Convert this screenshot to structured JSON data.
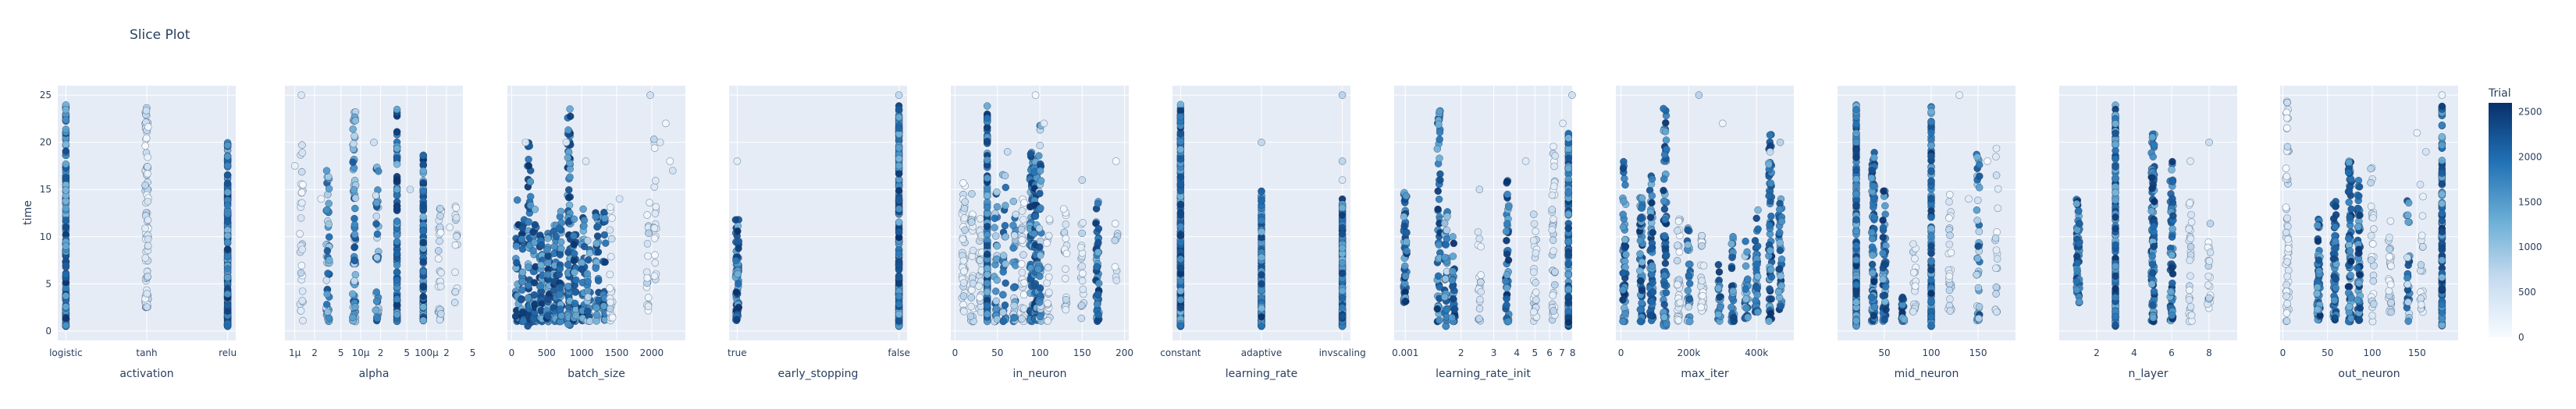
{
  "chart_data": {
    "type": "scatter",
    "title": "Slice Plot",
    "ylabel": "time",
    "ylim": [
      -1,
      26
    ],
    "yticks": [
      0,
      5,
      10,
      15,
      20,
      25
    ],
    "grid": true,
    "colorbar": {
      "title": "Trial",
      "ticks": [
        0,
        500,
        1000,
        1500,
        2000,
        2500
      ],
      "range": [
        0,
        2600
      ],
      "colorscale": [
        "#f7fbff",
        "#c6dbef",
        "#6baed6",
        "#2171b5",
        "#08306b"
      ]
    },
    "panels": [
      {
        "xlabel": "activation",
        "scale": "category",
        "categories": [
          "logistic",
          "tanh",
          "relu"
        ],
        "xrange": [
          -0.1,
          2.1
        ],
        "ticks": [
          0,
          1,
          2
        ],
        "ticklabels": [
          "logistic",
          "tanh",
          "relu"
        ],
        "columns": [
          [
            0,
            0.5,
            24,
            "d",
            200
          ],
          [
            1,
            2.5,
            24,
            "h",
            100
          ],
          [
            2,
            0.5,
            20,
            "d",
            300
          ]
        ]
      },
      {
        "xlabel": "alpha",
        "scale": "log",
        "xrange": [
          -6.15,
          -3.45
        ],
        "ticks": [
          -6,
          -5.699,
          -5.301,
          -5,
          -4.699,
          -4.301,
          -4,
          -3.699,
          -3.301
        ],
        "ticklabels": [
          "1μ",
          "2",
          "5",
          "10μ",
          "2",
          "5",
          "100μ",
          "2",
          "5"
        ],
        "columns": [
          [
            -5.9,
            1,
            20,
            "h",
            30
          ],
          [
            -5.5,
            1,
            17,
            "m",
            50
          ],
          [
            -5.1,
            1,
            24,
            "m",
            80
          ],
          [
            -4.75,
            1,
            18,
            "m",
            40
          ],
          [
            -4.45,
            1,
            24,
            "d",
            120
          ],
          [
            -4.05,
            1,
            19,
            "d",
            130
          ],
          [
            -3.8,
            1,
            13,
            "h",
            30
          ],
          [
            -3.55,
            3,
            16,
            "h",
            15
          ]
        ],
        "scatter": [
          [
            -5.9,
            25
          ],
          [
            -6.0,
            17.5
          ],
          [
            -5.6,
            14
          ],
          [
            -4.8,
            20
          ],
          [
            -4.25,
            15
          ],
          [
            -3.65,
            11
          ]
        ]
      },
      {
        "xlabel": "batch_size",
        "scale": "linear",
        "xrange": [
          -60,
          2480
        ],
        "ticks": [
          0,
          500,
          1000,
          1500,
          2000
        ],
        "ticklabels": [
          "0",
          "500",
          "1000",
          "1500",
          "2000"
        ],
        "columns": [
          [
            80,
            1,
            14,
            "d",
            30
          ],
          [
            160,
            1,
            12,
            "d",
            30
          ],
          [
            250,
            0.5,
            20,
            "d",
            50
          ],
          [
            330,
            1,
            13,
            "d",
            40
          ],
          [
            420,
            1,
            11,
            "d",
            40
          ],
          [
            520,
            1,
            12,
            "d",
            40
          ],
          [
            620,
            1,
            12,
            "d",
            40
          ],
          [
            700,
            1,
            13,
            "d",
            40
          ],
          [
            820,
            0.5,
            24,
            "d",
            90
          ],
          [
            900,
            1,
            12,
            "d",
            40
          ],
          [
            1020,
            1,
            13,
            "d",
            40
          ],
          [
            1100,
            1,
            10,
            "m",
            25
          ],
          [
            1220,
            1,
            13,
            "d",
            30
          ],
          [
            1320,
            1,
            14,
            "d",
            30
          ],
          [
            1420,
            1,
            14,
            "h",
            20
          ],
          [
            1950,
            2,
            14,
            "h",
            20
          ],
          [
            2050,
            3,
            22,
            "h",
            20
          ]
        ],
        "scatter": [
          [
            200,
            20
          ],
          [
            780,
            20
          ],
          [
            1060,
            18
          ],
          [
            1540,
            14
          ],
          [
            1980,
            25
          ],
          [
            2120,
            20
          ],
          [
            2200,
            22
          ],
          [
            2260,
            18
          ],
          [
            2300,
            17
          ]
        ]
      },
      {
        "xlabel": "early_stopping",
        "scale": "category",
        "categories": [
          "true",
          "false"
        ],
        "xrange": [
          -0.05,
          1.05
        ],
        "ticks": [
          0,
          1
        ],
        "ticklabels": [
          "true",
          "false"
        ],
        "columns": [
          [
            0,
            1,
            12,
            "d",
            80
          ],
          [
            1,
            0.5,
            24,
            "d",
            300
          ]
        ],
        "scatter": [
          [
            0,
            18
          ],
          [
            1,
            25
          ]
        ]
      },
      {
        "xlabel": "in_neuron",
        "scale": "linear",
        "xrange": [
          -5,
          205
        ],
        "ticks": [
          0,
          50,
          100,
          150,
          200
        ],
        "ticklabels": [
          "0",
          "50",
          "100",
          "150",
          "200"
        ],
        "columns": [
          [
            10,
            1,
            16,
            "h",
            40
          ],
          [
            20,
            1,
            15,
            "h",
            30
          ],
          [
            30,
            2,
            12,
            "h",
            30
          ],
          [
            38,
            1,
            24,
            "d",
            120
          ],
          [
            48,
            1,
            15,
            "m",
            30
          ],
          [
            58,
            1,
            17,
            "m",
            30
          ],
          [
            70,
            1,
            14,
            "m",
            30
          ],
          [
            80,
            1,
            14,
            "h",
            30
          ],
          [
            90,
            1,
            19,
            "d",
            60
          ],
          [
            95,
            1,
            18,
            "d",
            60
          ],
          [
            100,
            1,
            22,
            "m",
            50
          ],
          [
            110,
            1,
            13,
            "h",
            20
          ],
          [
            130,
            2,
            14,
            "h",
            20
          ],
          [
            150,
            1,
            12,
            "h",
            20
          ],
          [
            168,
            1,
            14,
            "d",
            50
          ],
          [
            190,
            5,
            14,
            "h",
            10
          ]
        ],
        "scatter": [
          [
            95,
            25
          ],
          [
            105,
            22
          ],
          [
            190,
            18
          ],
          [
            62,
            19
          ],
          [
            150,
            16
          ]
        ]
      },
      {
        "xlabel": "learning_rate",
        "scale": "category",
        "categories": [
          "constant",
          "adaptive",
          "invscaling"
        ],
        "xrange": [
          -0.1,
          2.1
        ],
        "ticks": [
          0,
          1,
          2
        ],
        "ticklabels": [
          "constant",
          "adaptive",
          "invscaling"
        ],
        "columns": [
          [
            0,
            0.5,
            24,
            "d",
            300
          ],
          [
            1,
            0.5,
            15,
            "d",
            160
          ],
          [
            2,
            0.5,
            14,
            "d",
            160
          ]
        ],
        "scatter": [
          [
            1,
            20
          ],
          [
            2,
            18
          ],
          [
            2,
            25
          ],
          [
            2,
            16
          ]
        ]
      },
      {
        "xlabel": "learning_rate_init",
        "scale": "log",
        "xrange": [
          -3.06,
          -2.1
        ],
        "ticks": [
          -3,
          -2.699,
          -2.523,
          -2.398,
          -2.301,
          -2.222,
          -2.155,
          -2.097
        ],
        "ticklabels": [
          "0.001",
          "2",
          "3",
          "4",
          "5",
          "6",
          "7",
          "8"
        ],
        "extra_ticks": [
          "1"
        ],
        "columns": [
          [
            -3.0,
            3,
            16,
            "d",
            60
          ],
          [
            -2.82,
            1,
            24,
            "d",
            60
          ],
          [
            -2.78,
            0.5,
            13,
            "m",
            40
          ],
          [
            -2.74,
            1,
            10,
            "d",
            30
          ],
          [
            -2.6,
            1,
            12,
            "h",
            20
          ],
          [
            -2.45,
            1,
            16,
            "d",
            50
          ],
          [
            -2.3,
            1,
            13,
            "h",
            30
          ],
          [
            -2.2,
            1,
            20,
            "h",
            40
          ],
          [
            -2.12,
            0.5,
            21,
            "d",
            120
          ]
        ],
        "scatter": [
          [
            -2.1,
            25
          ],
          [
            -2.15,
            22
          ],
          [
            -2.35,
            18
          ],
          [
            -2.6,
            15
          ]
        ]
      },
      {
        "xlabel": "max_iter",
        "scale": "linear",
        "xrange": [
          -15000,
          510000
        ],
        "ticks": [
          0,
          200000,
          400000
        ],
        "ticklabels": [
          "0",
          "200k",
          "400k"
        ],
        "columns": [
          [
            10000,
            1,
            18,
            "d",
            60
          ],
          [
            60000,
            1,
            15,
            "d",
            60
          ],
          [
            90000,
            1,
            17,
            "d",
            60
          ],
          [
            130000,
            0.5,
            24,
            "d",
            90
          ],
          [
            170000,
            1,
            13,
            "h",
            40
          ],
          [
            200000,
            1,
            11,
            "m",
            30
          ],
          [
            240000,
            2,
            12,
            "h",
            30
          ],
          [
            290000,
            1,
            8,
            "d",
            20
          ],
          [
            330000,
            1,
            10,
            "d",
            30
          ],
          [
            370000,
            1,
            10,
            "m",
            30
          ],
          [
            400000,
            2,
            13,
            "d",
            40
          ],
          [
            440000,
            1,
            21,
            "d",
            70
          ],
          [
            470000,
            2,
            15,
            "d",
            40
          ]
        ],
        "scatter": [
          [
            300000,
            22
          ],
          [
            440000,
            19
          ],
          [
            470000,
            20
          ],
          [
            230000,
            25
          ]
        ]
      },
      {
        "xlabel": "mid_neuron",
        "scale": "linear",
        "xrange": [
          0,
          190
        ],
        "ticks": [
          50,
          100,
          150
        ],
        "ticklabels": [
          "50",
          "100",
          "150"
        ],
        "columns": [
          [
            20,
            0.5,
            24,
            "d",
            200
          ],
          [
            38,
            1,
            19,
            "d",
            80
          ],
          [
            50,
            1,
            15,
            "d",
            60
          ],
          [
            70,
            1,
            4,
            "d",
            20
          ],
          [
            82,
            2,
            10,
            "h",
            20
          ],
          [
            100,
            0.5,
            24,
            "d",
            120
          ],
          [
            120,
            2,
            15,
            "h",
            30
          ],
          [
            150,
            1,
            19,
            "m",
            40
          ],
          [
            170,
            2,
            20,
            "h",
            20
          ]
        ],
        "scatter": [
          [
            130,
            25
          ],
          [
            160,
            18
          ],
          [
            140,
            14
          ]
        ]
      },
      {
        "xlabel": "n_layer",
        "scale": "linear",
        "xrange": [
          0,
          9.5
        ],
        "ticks": [
          2,
          4,
          6,
          8
        ],
        "ticklabels": [
          "2",
          "4",
          "6",
          "8"
        ],
        "columns": [
          [
            1,
            3,
            14,
            "d",
            60
          ],
          [
            3,
            0.5,
            24,
            "d",
            150
          ],
          [
            5,
            1,
            21,
            "d",
            100
          ],
          [
            6,
            1,
            18,
            "d",
            60
          ],
          [
            7,
            1,
            16,
            "h",
            30
          ],
          [
            8,
            2,
            12,
            "h",
            20
          ]
        ],
        "scatter": [
          [
            8,
            20
          ],
          [
            7,
            18
          ]
        ]
      },
      {
        "xlabel": "out_neuron",
        "scale": "linear",
        "xrange": [
          -3,
          196
        ],
        "ticks": [
          0,
          50,
          100,
          150
        ],
        "ticklabels": [
          "0",
          "50",
          "100",
          "150"
        ],
        "columns": [
          [
            5,
            1,
            25,
            "h",
            60
          ],
          [
            40,
            1,
            12,
            "d",
            60
          ],
          [
            58,
            1,
            14,
            "d",
            60
          ],
          [
            75,
            1,
            18,
            "d",
            80
          ],
          [
            85,
            1,
            16,
            "d",
            60
          ],
          [
            100,
            1,
            18,
            "h",
            30
          ],
          [
            120,
            2,
            12,
            "h",
            30
          ],
          [
            140,
            1,
            14,
            "m",
            30
          ],
          [
            155,
            2,
            16,
            "h",
            20
          ],
          [
            178,
            0.5,
            24,
            "d",
            160
          ]
        ],
        "scatter": [
          [
            178,
            25
          ],
          [
            160,
            19
          ],
          [
            150,
            21
          ]
        ]
      }
    ]
  }
}
